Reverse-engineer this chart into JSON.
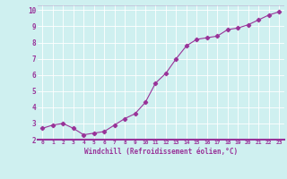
{
  "x": [
    0,
    1,
    2,
    3,
    4,
    5,
    6,
    7,
    8,
    9,
    10,
    11,
    12,
    13,
    14,
    15,
    16,
    17,
    18,
    19,
    20,
    21,
    22,
    23
  ],
  "y": [
    2.7,
    2.9,
    3.0,
    2.7,
    2.3,
    2.4,
    2.5,
    2.9,
    3.3,
    3.6,
    4.3,
    5.5,
    6.1,
    7.0,
    7.8,
    8.2,
    8.3,
    8.4,
    8.8,
    8.9,
    9.1,
    9.4,
    9.7,
    9.9
  ],
  "line_color": "#993399",
  "marker": "D",
  "marker_size": 2.2,
  "bg_color": "#cff0f0",
  "grid_color": "#ffffff",
  "xlabel": "Windchill (Refroidissement éolien,°C)",
  "xlabel_color": "#993399",
  "tick_color": "#993399",
  "xlim": [
    -0.5,
    23.5
  ],
  "ylim": [
    2.0,
    10.3
  ],
  "yticks": [
    2,
    3,
    4,
    5,
    6,
    7,
    8,
    9,
    10
  ],
  "xticks": [
    0,
    1,
    2,
    3,
    4,
    5,
    6,
    7,
    8,
    9,
    10,
    11,
    12,
    13,
    14,
    15,
    16,
    17,
    18,
    19,
    20,
    21,
    22,
    23
  ],
  "separator_color": "#993399",
  "top_bg_color": "#cff0f0"
}
